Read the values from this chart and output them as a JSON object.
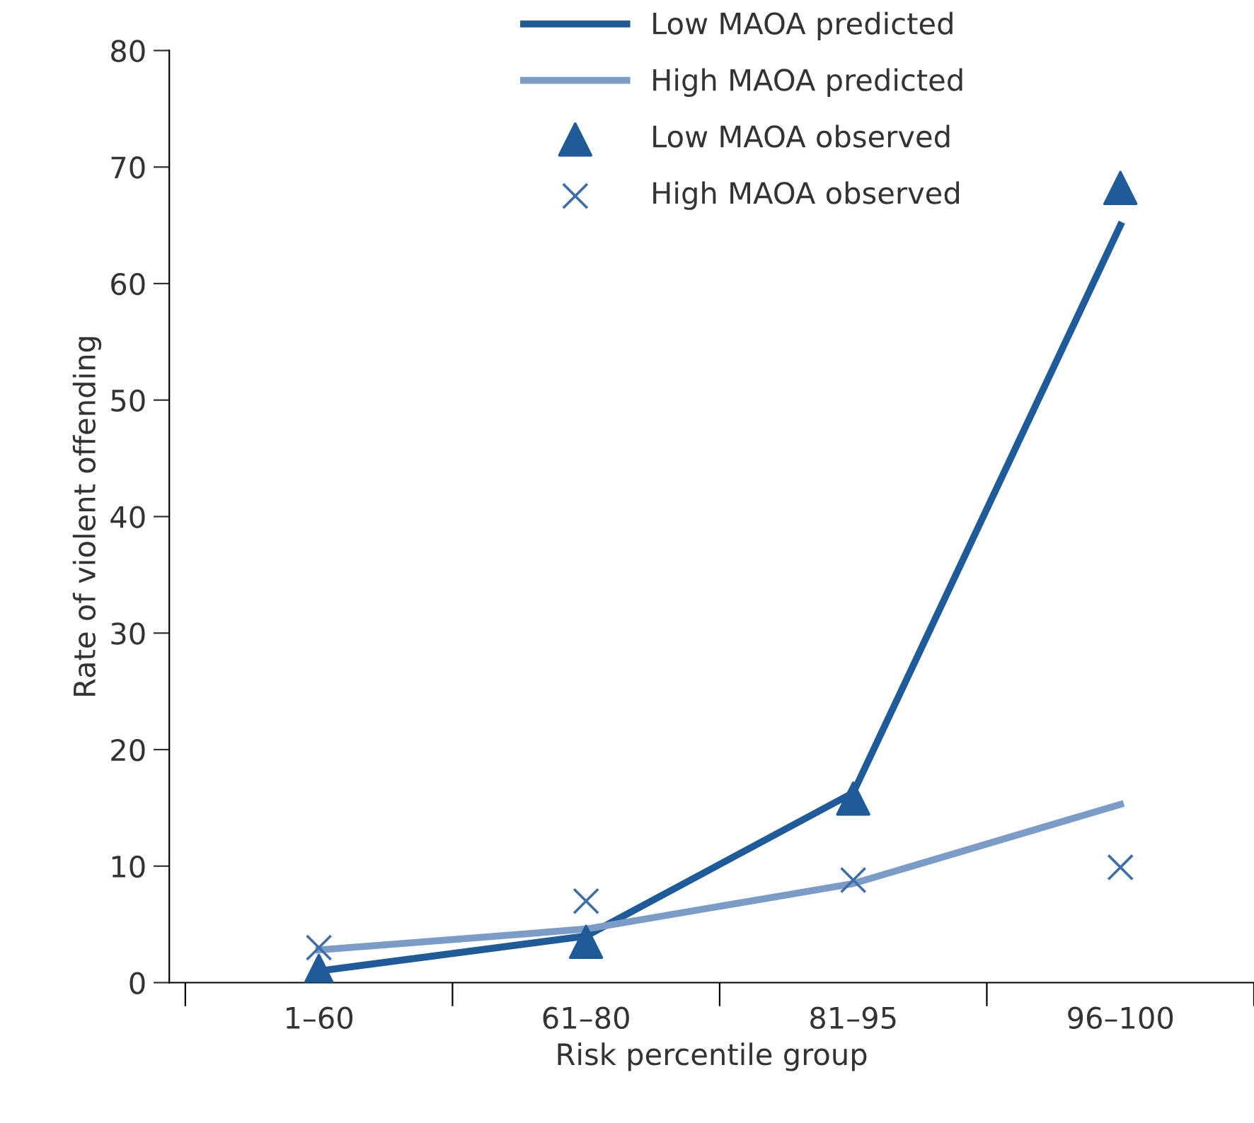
{
  "chart_data": {
    "type": "line",
    "xlabel": "Risk percentile group",
    "ylabel": "Rate of violent offending",
    "categories": [
      "1–60",
      "61–80",
      "81–95",
      "96–100"
    ],
    "ylim": [
      0,
      80
    ],
    "yticks": [
      0,
      10,
      20,
      30,
      40,
      50,
      60,
      70,
      80
    ],
    "grid": false,
    "legend": "top",
    "series": [
      {
        "name": "Low MAOA predicted",
        "color": "#1f5a99",
        "marker": "none",
        "values": [
          1,
          4,
          16.3,
          65
        ]
      },
      {
        "name": "High MAOA predicted",
        "color": "#7b9cc6",
        "marker": "none",
        "values": [
          2.8,
          4.6,
          8.5,
          15.3
        ]
      },
      {
        "name": "Low MAOA observed",
        "type": "scatter",
        "color": "#1f5a99",
        "marker": "triangle",
        "values": [
          1,
          3.5,
          15.8,
          68.2
        ]
      },
      {
        "name": "High MAOA observed",
        "type": "scatter",
        "color": "#3d6eab",
        "marker": "cross",
        "values": [
          3,
          7,
          8.8,
          9.9
        ]
      }
    ]
  }
}
